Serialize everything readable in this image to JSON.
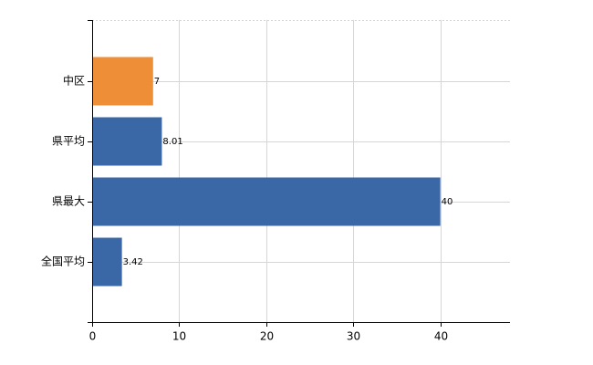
{
  "chart_data": {
    "type": "bar",
    "orientation": "horizontal",
    "categories": [
      "中区",
      "県平均",
      "県最大",
      "全国平均"
    ],
    "values": [
      7,
      8.01,
      40,
      3.42
    ],
    "colors": [
      "#ee8e36",
      "#3a68a6",
      "#3a68a6",
      "#3a68a6"
    ],
    "xlim": [
      0,
      48
    ],
    "xticks": [
      0,
      10,
      20,
      30,
      40
    ],
    "grid": true
  }
}
